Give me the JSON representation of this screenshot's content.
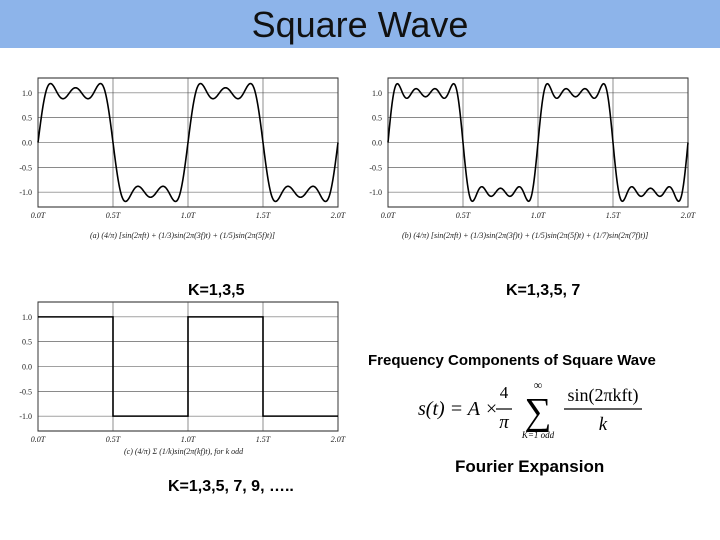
{
  "slide": {
    "title": "Square Wave",
    "title_bar_color": "#8db4ea",
    "labels": {
      "k135": "K=1,3,5",
      "k1357": "K=1,3,5, 7",
      "kall": "K=1,3,5, 7, 9, …..",
      "freq_title": "Frequency Components of Square Wave",
      "fourier": "Fourier Expansion"
    },
    "formula": {
      "lhs": "s(t) = A ×",
      "frac_num": "4",
      "frac_den": "π",
      "sum_top": "∞",
      "sum_sign": "∑",
      "sum_bottom": "K=1 odd",
      "term_num": "sin(2πkft)",
      "term_den": "k"
    }
  },
  "chart_data": [
    {
      "type": "line",
      "ylim": [
        -1.0,
        1.0
      ],
      "y_ticks": [
        "1.0",
        "0.5",
        "0.0",
        "-0.5",
        "-1.0"
      ],
      "x_ticks": [
        "0.0T",
        "0.5T",
        "1.0T",
        "1.5T",
        "2.0T"
      ],
      "caption": "(a) (4/π) [sin(2πft) + (1/3)sin(2π(3f)t) + (1/5)sin(2π(5f)t)]",
      "harmonics": [
        1,
        3,
        5
      ],
      "x": "t from 0.0T to 2.0T",
      "series": [
        {
          "values": "(4/π)·Σ sin(2πkt/T)/k for k = 1, 3, 5"
        }
      ]
    },
    {
      "type": "line",
      "ylim": [
        -1.0,
        1.0
      ],
      "y_ticks": [
        "1.0",
        "0.5",
        "0.0",
        "-0.5",
        "-1.0"
      ],
      "x_ticks": [
        "0.0T",
        "0.5T",
        "1.0T",
        "1.5T",
        "2.0T"
      ],
      "caption": "(b) (4/π) [sin(2πft) + (1/3)sin(2π(3f)t) + (1/5)sin(2π(5f)t) + (1/7)sin(2π(7f)t)]",
      "harmonics": [
        1,
        3,
        5,
        7
      ],
      "x": "t from 0.0T to 2.0T",
      "series": [
        {
          "values": "(4/π)·Σ sin(2πkt/T)/k for k = 1, 3, 5, 7"
        }
      ]
    },
    {
      "type": "line",
      "ylim": [
        -1.0,
        1.0
      ],
      "y_ticks": [
        "1.0",
        "0.5",
        "0.0",
        "-0.5",
        "-1.0"
      ],
      "x_ticks": [
        "0.0T",
        "0.5T",
        "1.0T",
        "1.5T",
        "2.0T"
      ],
      "caption": "(c) (4/π) Σ (1/k)sin(2π(kf)t), for k odd",
      "harmonics": "all odd",
      "x": [
        0.0,
        0.5,
        0.5,
        1.0,
        1.0,
        1.5,
        1.5,
        2.0
      ],
      "series": [
        {
          "values": [
            1,
            1,
            -1,
            -1,
            1,
            1,
            -1,
            -1
          ]
        }
      ]
    }
  ]
}
